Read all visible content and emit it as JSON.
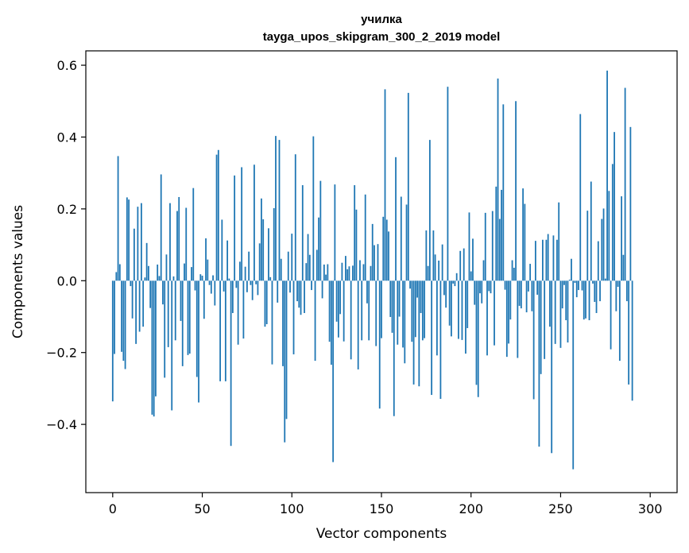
{
  "chart_data": {
    "type": "bar",
    "title": "училка",
    "subtitle": "tayga_upos_skipgram_300_2_2019 model",
    "xlabel": "Vector components",
    "ylabel": "Components values",
    "xlim": [
      -15,
      315
    ],
    "ylim": [
      -0.59,
      0.64
    ],
    "x_ticks": [
      0,
      50,
      100,
      150,
      200,
      250,
      300
    ],
    "y_ticks": [
      -0.4,
      -0.2,
      0.0,
      0.2,
      0.4,
      0.6
    ],
    "y_tick_labels": [
      "−0.4",
      "−0.2",
      "0.0",
      "0.2",
      "0.4",
      "0.6"
    ],
    "bar_color": "#1f77b4",
    "values": [
      -0.336,
      -0.204,
      0.024,
      0.347,
      0.046,
      -0.198,
      -0.223,
      -0.246,
      0.232,
      0.226,
      -0.015,
      -0.105,
      0.145,
      -0.176,
      0.206,
      -0.142,
      0.216,
      -0.128,
      0.009,
      0.105,
      0.041,
      -0.076,
      -0.373,
      -0.378,
      -0.322,
      0.045,
      0.013,
      0.296,
      -0.066,
      -0.27,
      0.073,
      -0.185,
      0.216,
      -0.361,
      0.012,
      -0.166,
      0.194,
      0.233,
      -0.112,
      -0.238,
      0.048,
      0.203,
      -0.207,
      -0.203,
      0.038,
      0.258,
      -0.027,
      -0.268,
      -0.339,
      0.018,
      0.014,
      -0.106,
      0.118,
      0.059,
      -0.012,
      -0.036,
      0.015,
      -0.069,
      0.351,
      0.364,
      -0.28,
      0.17,
      -0.03,
      -0.28,
      0.112,
      0.006,
      -0.46,
      -0.09,
      0.293,
      -0.02,
      -0.178,
      0.053,
      0.316,
      -0.161,
      0.039,
      -0.032,
      0.081,
      -0.012,
      -0.054,
      0.323,
      -0.01,
      -0.04,
      0.104,
      0.229,
      0.171,
      -0.128,
      -0.121,
      0.146,
      0.01,
      -0.233,
      0.202,
      0.403,
      -0.061,
      0.392,
      0.061,
      -0.238,
      -0.45,
      -0.385,
      0.081,
      -0.033,
      0.131,
      -0.205,
      0.352,
      -0.057,
      -0.075,
      -0.095,
      0.266,
      -0.09,
      0.049,
      0.13,
      0.072,
      -0.026,
      0.402,
      -0.223,
      0.086,
      0.176,
      0.278,
      -0.049,
      0.045,
      0.017,
      0.046,
      -0.17,
      -0.234,
      -0.505,
      0.268,
      -0.114,
      -0.158,
      -0.093,
      0.05,
      -0.169,
      0.069,
      0.032,
      0.04,
      -0.219,
      0.042,
      0.266,
      0.198,
      -0.247,
      0.057,
      -0.166,
      0.046,
      0.24,
      -0.063,
      -0.166,
      0.041,
      0.158,
      0.099,
      -0.182,
      0.102,
      -0.356,
      -0.16,
      0.178,
      0.533,
      0.17,
      0.137,
      -0.101,
      -0.145,
      -0.377,
      0.344,
      -0.178,
      -0.1,
      0.234,
      -0.186,
      -0.23,
      0.212,
      0.523,
      -0.022,
      -0.17,
      -0.289,
      -0.157,
      -0.047,
      -0.294,
      -0.09,
      -0.166,
      -0.16,
      0.14,
      0.041,
      0.392,
      -0.318,
      0.14,
      0.073,
      -0.208,
      0.056,
      -0.329,
      0.101,
      -0.04,
      -0.075,
      0.54,
      -0.125,
      -0.155,
      -0.008,
      -0.015,
      0.021,
      -0.162,
      0.083,
      -0.165,
      0.09,
      -0.203,
      -0.132,
      0.19,
      0.026,
      0.117,
      -0.067,
      -0.29,
      -0.324,
      -0.035,
      -0.063,
      0.057,
      0.189,
      -0.208,
      -0.029,
      -0.035,
      0.194,
      -0.18,
      0.262,
      0.563,
      0.172,
      0.253,
      0.491,
      -0.025,
      -0.212,
      -0.175,
      -0.108,
      0.057,
      0.036,
      0.5,
      -0.215,
      -0.07,
      -0.077,
      0.257,
      0.214,
      -0.088,
      -0.03,
      0.047,
      -0.085,
      -0.33,
      0.111,
      -0.039,
      -0.462,
      -0.26,
      0.114,
      -0.218,
      0.114,
      0.13,
      -0.128,
      -0.48,
      0.126,
      -0.176,
      0.114,
      0.218,
      -0.187,
      -0.077,
      -0.012,
      -0.11,
      -0.172,
      0.003,
      0.061,
      -0.525,
      -0.006,
      -0.046,
      -0.026,
      0.464,
      -0.027,
      -0.108,
      -0.105,
      0.195,
      -0.11,
      0.276,
      -0.008,
      -0.059,
      -0.09,
      0.11,
      -0.057,
      0.172,
      0.201,
      0.006,
      0.585,
      0.25,
      -0.191,
      0.325,
      0.414,
      -0.085,
      -0.017,
      -0.223,
      0.235,
      0.072,
      0.537,
      -0.057,
      -0.289,
      0.428,
      -0.334
    ]
  }
}
